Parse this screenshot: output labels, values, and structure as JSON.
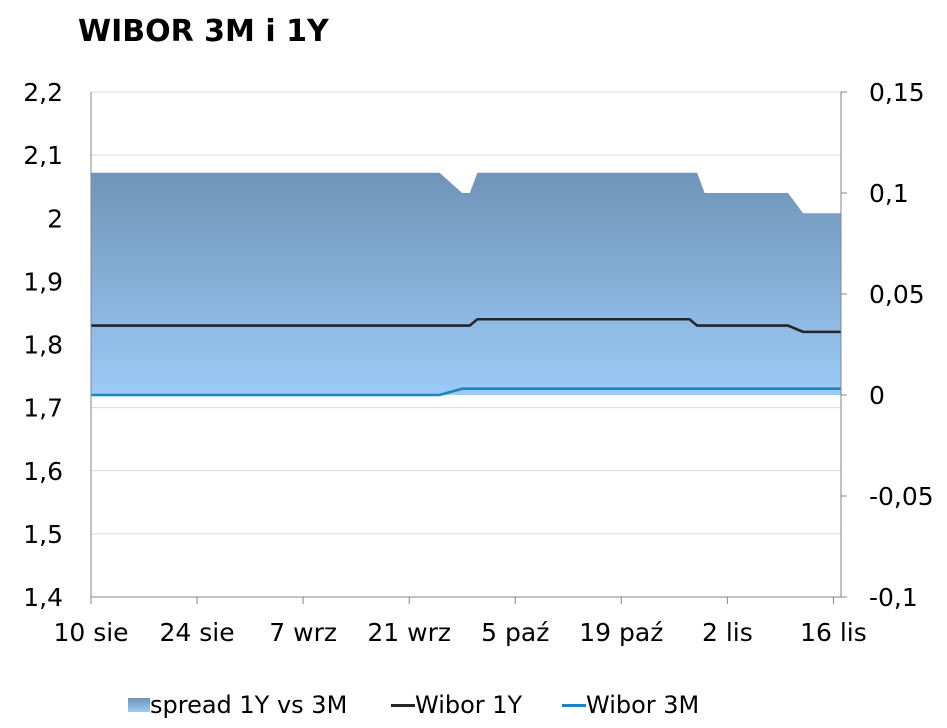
{
  "chart_data": {
    "type": "area",
    "title": "WIBOR 3M i 1Y",
    "x_tick_labels": [
      "10 sie",
      "24 sie",
      "7 wrz",
      "21 wrz",
      "5 paź",
      "19 paź",
      "2 lis",
      "16 lis"
    ],
    "x_tick_days": [
      0,
      14,
      28,
      42,
      56,
      70,
      84,
      98
    ],
    "x_range_days": [
      0,
      99
    ],
    "y_left": {
      "ylim": [
        1.4,
        2.2
      ],
      "ticks": [
        "1,4",
        "1,5",
        "1,6",
        "1,7",
        "1,8",
        "1,9",
        "2",
        "2,1",
        "2,2"
      ],
      "tick_values": [
        1.4,
        1.5,
        1.6,
        1.7,
        1.8,
        1.9,
        2.0,
        2.1,
        2.2
      ]
    },
    "y_right": {
      "ylim": [
        -0.1,
        0.15
      ],
      "ticks": [
        "-0,1",
        "-0,05",
        "0",
        "0,05",
        "0,1",
        "0,15"
      ],
      "tick_values": [
        -0.1,
        -0.05,
        0,
        0.05,
        0.1,
        0.15
      ]
    },
    "grid": true,
    "legend_position": "bottom",
    "series": [
      {
        "name": "spread 1Y vs 3M",
        "type": "area",
        "axis": "right",
        "color_top": "#6f94b8",
        "color_bottom": "#9ccbf7",
        "points": [
          [
            0,
            0.11
          ],
          [
            46,
            0.11
          ],
          [
            49,
            0.1
          ],
          [
            50,
            0.1
          ],
          [
            51,
            0.11
          ],
          [
            80,
            0.11
          ],
          [
            81,
            0.1
          ],
          [
            92,
            0.1
          ],
          [
            94,
            0.09
          ],
          [
            99,
            0.09
          ]
        ]
      },
      {
        "name": "Wibor 1Y",
        "type": "line",
        "axis": "left",
        "color": "#262626",
        "points": [
          [
            0,
            1.83
          ],
          [
            50,
            1.83
          ],
          [
            51,
            1.84
          ],
          [
            79,
            1.84
          ],
          [
            80,
            1.83
          ],
          [
            92,
            1.83
          ],
          [
            94,
            1.82
          ],
          [
            99,
            1.82
          ]
        ]
      },
      {
        "name": "Wibor 3M",
        "type": "line",
        "axis": "left",
        "color": "#1f84bb",
        "points": [
          [
            0,
            1.72
          ],
          [
            46,
            1.72
          ],
          [
            49,
            1.73
          ],
          [
            99,
            1.73
          ]
        ]
      }
    ]
  }
}
